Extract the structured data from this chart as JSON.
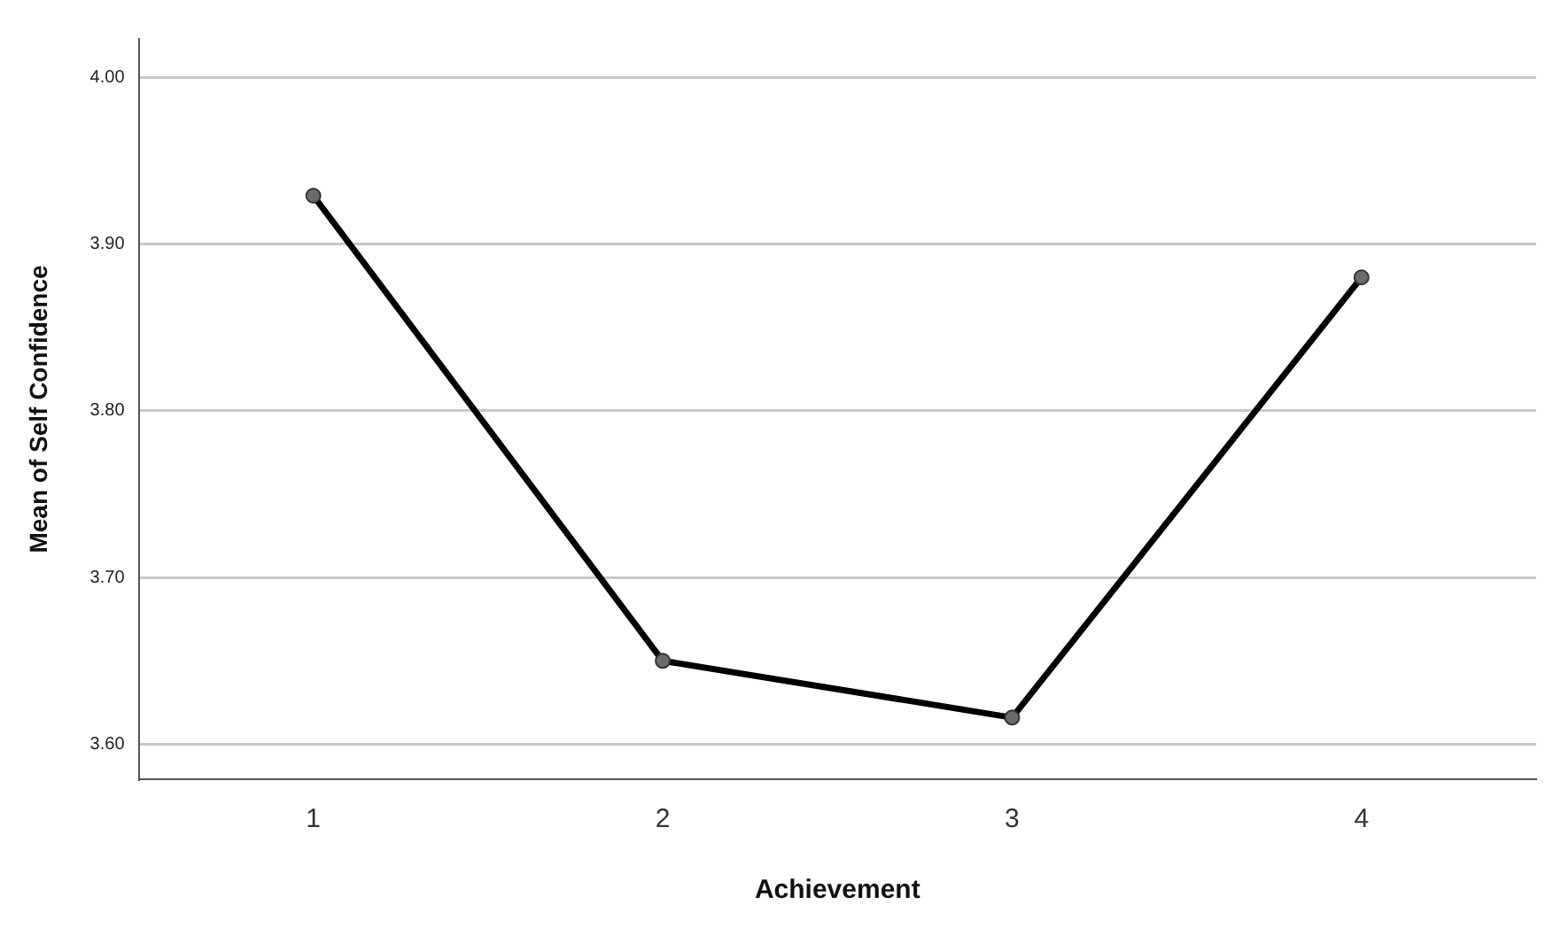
{
  "chart_data": {
    "type": "line",
    "xlabel": "Achievement",
    "ylabel": "Mean of Self Confidence",
    "categories": [
      "1",
      "2",
      "3",
      "4"
    ],
    "series": [
      {
        "color": "#000000",
        "values": [
          3.929,
          3.65,
          3.616,
          3.88
        ]
      }
    ],
    "ylim": [
      3.579,
      4.023
    ],
    "yticks": [
      {
        "value": 3.6,
        "label": "3.60"
      },
      {
        "value": 3.7,
        "label": "3.70"
      },
      {
        "value": 3.8,
        "label": "3.80"
      },
      {
        "value": 3.9,
        "label": "3.90"
      },
      {
        "value": 4.0,
        "label": "4.00"
      }
    ],
    "grid": "y",
    "legend": false,
    "marker": "circle",
    "line_style": "solid"
  }
}
